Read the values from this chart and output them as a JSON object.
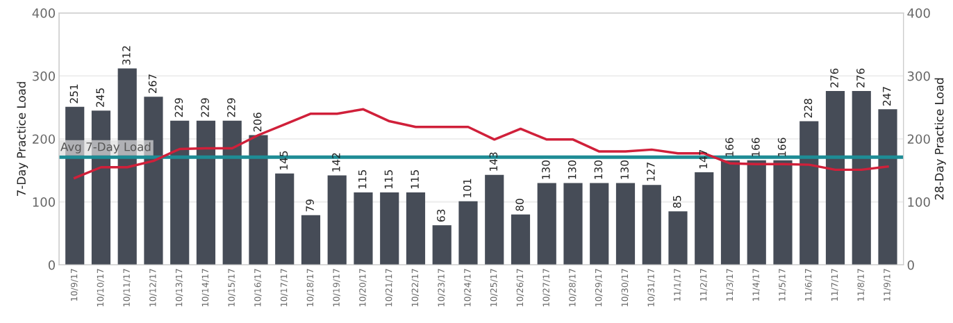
{
  "chart_data": {
    "type": "bar",
    "ylabel": "7-Day Practice Load",
    "y2label": "28-Day Practice Load",
    "categories": [
      "10/9/17",
      "10/10/17",
      "10/11/17",
      "10/12/17",
      "10/13/17",
      "10/14/17",
      "10/15/17",
      "10/16/17",
      "10/17/17",
      "10/18/17",
      "10/19/17",
      "10/20/17",
      "10/21/17",
      "10/22/17",
      "10/23/17",
      "10/24/17",
      "10/25/17",
      "10/26/17",
      "10/27/17",
      "10/28/17",
      "10/29/17",
      "10/30/17",
      "10/31/17",
      "11/1/17",
      "11/2/17",
      "11/3/17",
      "11/4/17",
      "11/5/17",
      "11/6/17",
      "11/7/17",
      "11/8/17",
      "11/9/17"
    ],
    "series": [
      {
        "color": "#464c57",
        "data_labels": true,
        "values": [
          251,
          245,
          312,
          267,
          229,
          229,
          229,
          206,
          145,
          79,
          142,
          115,
          115,
          115,
          63,
          101,
          143,
          80,
          130,
          130,
          130,
          130,
          127,
          85,
          147,
          166,
          166,
          166,
          228,
          276,
          276,
          247
        ]
      },
      {
        "type": "line",
        "axis": "y2",
        "color": "#d0203a",
        "values": [
          138,
          155,
          155,
          165,
          184,
          185,
          185,
          206,
          223,
          240,
          240,
          247,
          228,
          219,
          219,
          219,
          199,
          216,
          199,
          199,
          180,
          180,
          183,
          177,
          177,
          161,
          160,
          160,
          159,
          151,
          151,
          156
        ]
      }
    ],
    "ylim": [
      0,
      400
    ],
    "yticks": [
      0,
      100,
      200,
      300,
      400
    ],
    "y2lim": [
      0,
      400
    ],
    "y2ticks": [
      0,
      100,
      200,
      300,
      400
    ],
    "ref_lines": [
      {
        "axis": "y",
        "value": 171,
        "label": "Avg 7-Day Load",
        "color": "#1e8c95"
      }
    ],
    "grid": "y",
    "legend": false
  }
}
